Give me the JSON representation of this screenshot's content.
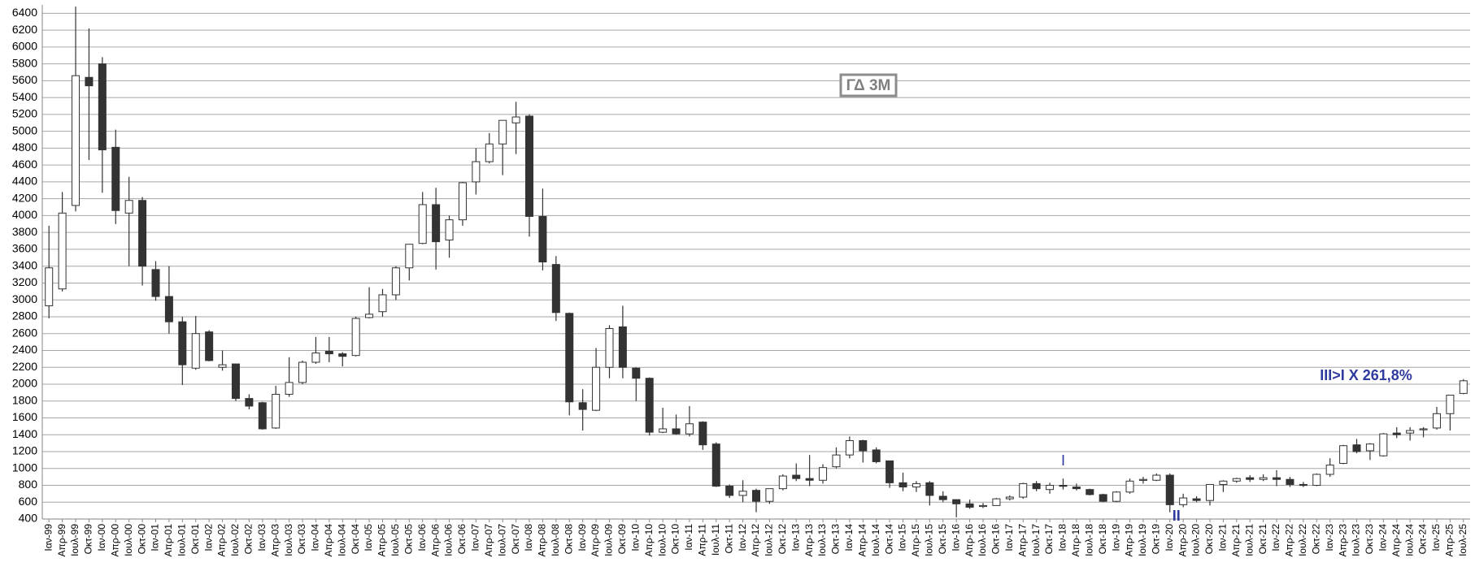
{
  "chart_data": {
    "type": "candlestick",
    "title": "ΓΔ 3M",
    "annotations": [
      "I",
      "II",
      "III>I X 261,8%"
    ],
    "categories": [
      "Ιαν-99",
      "Απρ-99",
      "Ιουλ-99",
      "Οκτ-99",
      "Ιαν-00",
      "Απρ-00",
      "Ιουλ-00",
      "Οκτ-00",
      "Ιαν-01",
      "Απρ-01",
      "Ιουλ-01",
      "Οκτ-01",
      "Ιαν-02",
      "Απρ-02",
      "Ιουλ-02",
      "Οκτ-02",
      "Ιαν-03",
      "Απρ-03",
      "Ιουλ-03",
      "Οκτ-03",
      "Ιαν-04",
      "Απρ-04",
      "Ιουλ-04",
      "Οκτ-04",
      "Ιαν-05",
      "Απρ-05",
      "Ιουλ-05",
      "Οκτ-05",
      "Ιαν-06",
      "Απρ-06",
      "Ιουλ-06",
      "Οκτ-06",
      "Ιαν-07",
      "Απρ-07",
      "Ιουλ-07",
      "Οκτ-07",
      "Ιαν-08",
      "Απρ-08",
      "Ιουλ-08",
      "Οκτ-08",
      "Ιαν-09",
      "Απρ-09",
      "Ιουλ-09",
      "Οκτ-09",
      "Ιαν-10",
      "Απρ-10",
      "Ιουλ-10",
      "Οκτ-10",
      "Ιαν-11",
      "Απρ-11",
      "Ιουλ-11",
      "Οκτ-11",
      "Ιαν-12",
      "Απρ-12",
      "Ιουλ-12",
      "Οκτ-12",
      "Ιαν-13",
      "Απρ-13",
      "Ιουλ-13",
      "Οκτ-13",
      "Ιαν-14",
      "Απρ-14",
      "Ιουλ-14",
      "Οκτ-14",
      "Ιαν-15",
      "Απρ-15",
      "Ιουλ-15",
      "Οκτ-15",
      "Ιαν-16",
      "Απρ-16",
      "Ιουλ-16",
      "Οκτ-16",
      "Ιαν-17",
      "Απρ-17",
      "Ιουλ-17",
      "Οκτ-17",
      "Ιαν-18",
      "Απρ-18",
      "Ιουλ-18",
      "Οκτ-18",
      "Ιαν-19",
      "Απρ-19",
      "Ιουλ-19",
      "Οκτ-19",
      "Ιαν-20",
      "Απρ-20",
      "Ιουλ-20",
      "Οκτ-20",
      "Ιαν-21",
      "Απρ-21",
      "Ιουλ-21",
      "Οκτ-21",
      "Ιαν-22",
      "Απρ-22",
      "Ιουλ-22",
      "Οκτ-22",
      "Ιαν-23",
      "Απρ-23",
      "Ιουλ-23",
      "Οκτ-23",
      "Ιαν-24",
      "Απρ-24",
      "Ιουλ-24",
      "Οκτ-24",
      "Ιαν-25",
      "Απρ-25",
      "Ιουλ-25"
    ],
    "open": [
      2930,
      3130,
      4120,
      5640,
      5800,
      4810,
      4030,
      4180,
      3360,
      3040,
      2740,
      2190,
      2620,
      2200,
      2240,
      1830,
      1780,
      1480,
      1880,
      2020,
      2260,
      2390,
      2360,
      2340,
      2790,
      2860,
      3060,
      3380,
      3670,
      4130,
      3710,
      3950,
      4400,
      4640,
      4850,
      5100,
      5180,
      3990,
      3420,
      2840,
      1780,
      1690,
      2200,
      2680,
      2190,
      2070,
      1430,
      1470,
      1410,
      1550,
      1290,
      790,
      680,
      740,
      610,
      760,
      920,
      880,
      860,
      1020,
      1160,
      1330,
      1220,
      1090,
      830,
      780,
      830,
      670,
      630,
      580,
      550,
      560,
      640,
      660,
      820,
      750,
      800,
      780,
      750,
      690,
      610,
      720,
      860,
      860,
      920,
      570,
      640,
      620,
      810,
      850,
      890,
      870,
      890,
      870,
      810,
      800,
      930,
      1060,
      1280,
      1210,
      1150,
      1420,
      1420,
      1460,
      1480,
      1650,
      1890
    ],
    "high": [
      3880,
      4280,
      6480,
      6220,
      5880,
      5020,
      4460,
      4220,
      3460,
      3400,
      2800,
      2810,
      2640,
      2400,
      2240,
      1880,
      1790,
      1980,
      2320,
      2280,
      2560,
      2560,
      2380,
      2800,
      3150,
      3130,
      3400,
      3660,
      4280,
      4330,
      4000,
      4400,
      4800,
      4980,
      5130,
      5350,
      5200,
      4320,
      3520,
      2850,
      1940,
      2430,
      2700,
      2930,
      2200,
      2080,
      1720,
      1640,
      1740,
      1560,
      1310,
      810,
      860,
      760,
      760,
      930,
      1060,
      1160,
      1050,
      1250,
      1380,
      1340,
      1250,
      1090,
      950,
      850,
      850,
      730,
      630,
      630,
      590,
      650,
      680,
      830,
      850,
      830,
      880,
      820,
      760,
      700,
      730,
      880,
      900,
      940,
      940,
      700,
      670,
      810,
      860,
      890,
      920,
      930,
      980,
      900,
      840,
      940,
      1120,
      1280,
      1350,
      1300,
      1420,
      1490,
      1490,
      1490,
      1730,
      1870,
      2060
    ],
    "low": [
      2780,
      3100,
      4050,
      4660,
      4270,
      3900,
      3400,
      3170,
      2990,
      2600,
      1990,
      2170,
      2270,
      2160,
      1800,
      1700,
      1460,
      1470,
      1850,
      2000,
      2240,
      2260,
      2210,
      2330,
      2780,
      2800,
      3000,
      3230,
      3660,
      3360,
      3500,
      3880,
      4250,
      4620,
      4480,
      4730,
      3750,
      3350,
      2750,
      1630,
      1450,
      1680,
      2070,
      2070,
      1800,
      1390,
      1420,
      1400,
      1380,
      1220,
      780,
      650,
      600,
      480,
      580,
      740,
      850,
      790,
      820,
      1000,
      1120,
      1070,
      1060,
      770,
      730,
      720,
      560,
      600,
      420,
      520,
      530,
      560,
      620,
      640,
      730,
      700,
      750,
      740,
      680,
      600,
      600,
      700,
      820,
      850,
      480,
      540,
      600,
      560,
      720,
      830,
      840,
      850,
      790,
      780,
      780,
      790,
      900,
      1050,
      1180,
      1100,
      1140,
      1360,
      1330,
      1370,
      1460,
      1450,
      1880
    ],
    "close": [
      3380,
      4030,
      5660,
      5540,
      4780,
      4060,
      4180,
      3400,
      3040,
      2740,
      2230,
      2600,
      2280,
      2230,
      1830,
      1740,
      1470,
      1880,
      2020,
      2260,
      2370,
      2360,
      2330,
      2780,
      2830,
      3060,
      3380,
      3660,
      4130,
      3690,
      3950,
      4390,
      4640,
      4850,
      5130,
      5170,
      3990,
      3450,
      2850,
      1790,
      1700,
      2200,
      2660,
      2200,
      2070,
      1430,
      1470,
      1410,
      1530,
      1280,
      790,
      680,
      730,
      610,
      760,
      910,
      880,
      860,
      1010,
      1160,
      1330,
      1210,
      1080,
      830,
      780,
      820,
      680,
      630,
      580,
      540,
      560,
      640,
      660,
      820,
      760,
      800,
      790,
      760,
      690,
      610,
      720,
      850,
      870,
      920,
      570,
      650,
      620,
      810,
      850,
      880,
      870,
      890,
      870,
      810,
      800,
      930,
      1040,
      1270,
      1200,
      1290,
      1410,
      1400,
      1450,
      1470,
      1650,
      1870,
      2040
    ],
    "up_color": "#ffffff",
    "down_color": "#333333",
    "edge_color": "#333333",
    "ylim": [
      400,
      6500
    ],
    "yticks": [
      400,
      600,
      800,
      1000,
      1200,
      1400,
      1600,
      1800,
      2000,
      2200,
      2400,
      2600,
      2800,
      3000,
      3200,
      3400,
      3600,
      3800,
      4000,
      4200,
      4400,
      4600,
      4800,
      5000,
      5200,
      5400,
      5600,
      5800,
      6000,
      6200,
      6400
    ],
    "grid": true
  }
}
